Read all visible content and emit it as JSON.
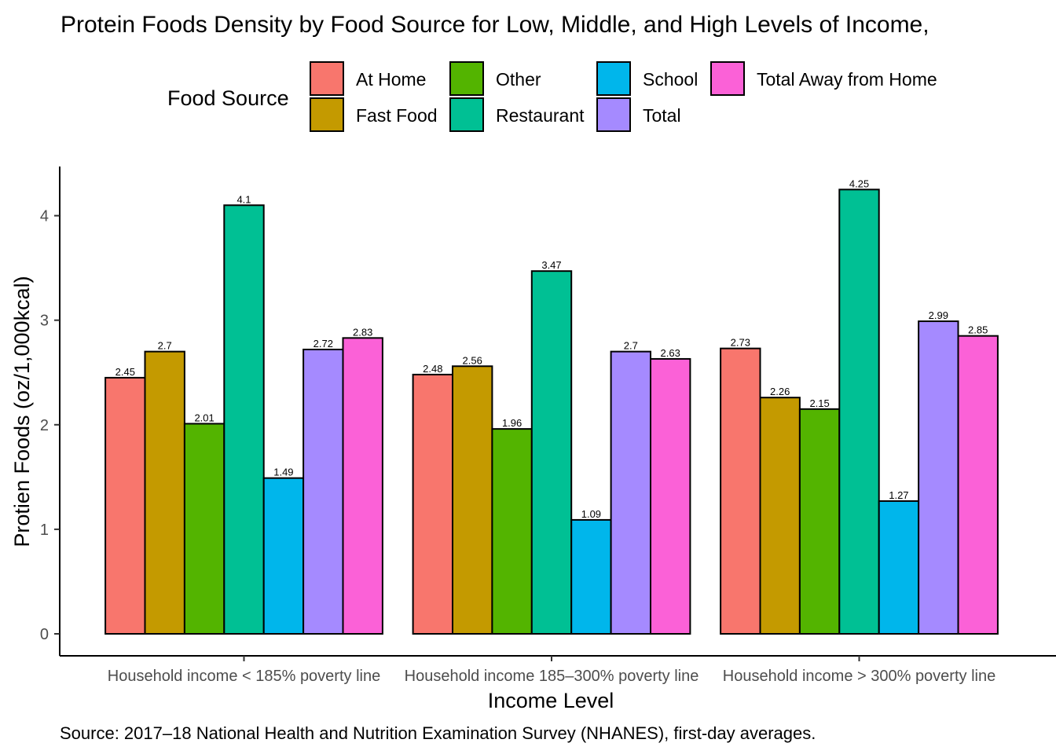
{
  "chart_data": {
    "type": "bar",
    "title": "Protein Foods Density by Food Source for Low, Middle, and High Levels of Income,",
    "xlabel": "Income Level",
    "ylabel": "Protien Foods (oz/1,000kcal)",
    "caption": "Source: 2017–18 National Health and Nutrition Examination Survey (NHANES), first-day averages.",
    "legend_title": "Food Source",
    "legend_position": "top",
    "grid": false,
    "ylim": [
      0,
      4.46
    ],
    "yticks": [
      0,
      1,
      2,
      3,
      4
    ],
    "categories": [
      "Household income < 185% poverty line",
      "Household income 185–300% poverty line",
      "Household income > 300% poverty line"
    ],
    "series": [
      {
        "name": "At Home",
        "color": "#F8766D",
        "values": [
          2.45,
          2.48,
          2.73
        ],
        "labels": [
          "2.45",
          "2.48",
          "2.73"
        ]
      },
      {
        "name": "Fast Food",
        "color": "#C49A00",
        "values": [
          2.7,
          2.56,
          2.26
        ],
        "labels": [
          "2.7",
          "2.56",
          "2.26"
        ]
      },
      {
        "name": "Other",
        "color": "#53B400",
        "values": [
          2.01,
          1.96,
          2.15
        ],
        "labels": [
          "2.01",
          "1.96",
          "2.15"
        ]
      },
      {
        "name": "Restaurant",
        "color": "#00C094",
        "values": [
          4.1,
          3.47,
          4.25
        ],
        "labels": [
          "4.1",
          "3.47",
          "4.25"
        ]
      },
      {
        "name": "School",
        "color": "#00B6EB",
        "values": [
          1.49,
          1.09,
          1.27
        ],
        "labels": [
          "1.49",
          "1.09",
          "1.27"
        ]
      },
      {
        "name": "Total",
        "color": "#A58AFF",
        "values": [
          2.72,
          2.7,
          2.99
        ],
        "labels": [
          "2.72",
          "2.7",
          "2.99"
        ]
      },
      {
        "name": "Total Away from Home",
        "color": "#FB61D7",
        "values": [
          2.83,
          2.63,
          2.85
        ],
        "labels": [
          "2.83",
          "2.63",
          "2.85"
        ]
      }
    ]
  }
}
